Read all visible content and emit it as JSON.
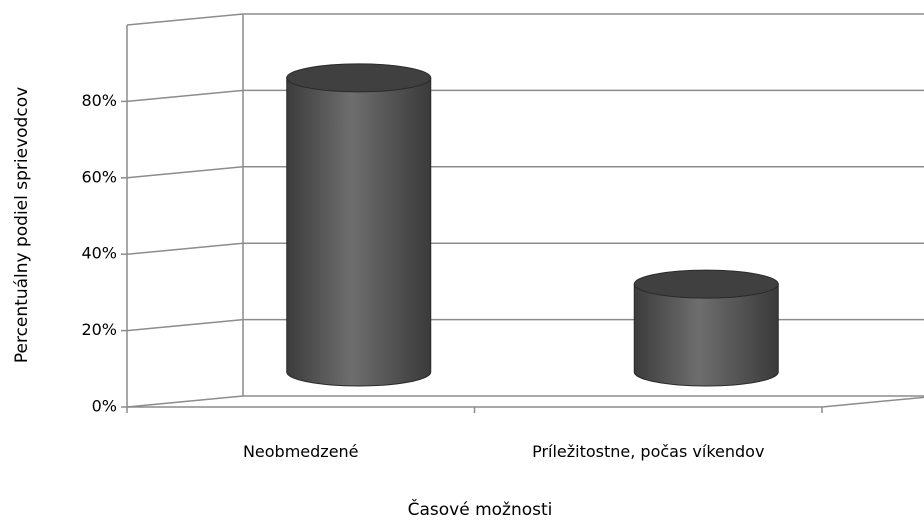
{
  "chart_data": {
    "type": "bar3d",
    "categories": [
      "Neobmedzené",
      "Príležitostne, počas víkendov"
    ],
    "values": [
      77,
      23
    ],
    "color": "#555555",
    "xlabel": "Časové možnosti",
    "ylabel": "Percentuálny podiel sprievodcov",
    "ylim": [
      0,
      100
    ],
    "yticks": [
      {
        "value": 0,
        "label": "0%"
      },
      {
        "value": 20,
        "label": "20%"
      },
      {
        "value": 40,
        "label": "40%"
      },
      {
        "value": 60,
        "label": "60%"
      },
      {
        "value": 80,
        "label": "80%"
      }
    ],
    "grid": true
  }
}
